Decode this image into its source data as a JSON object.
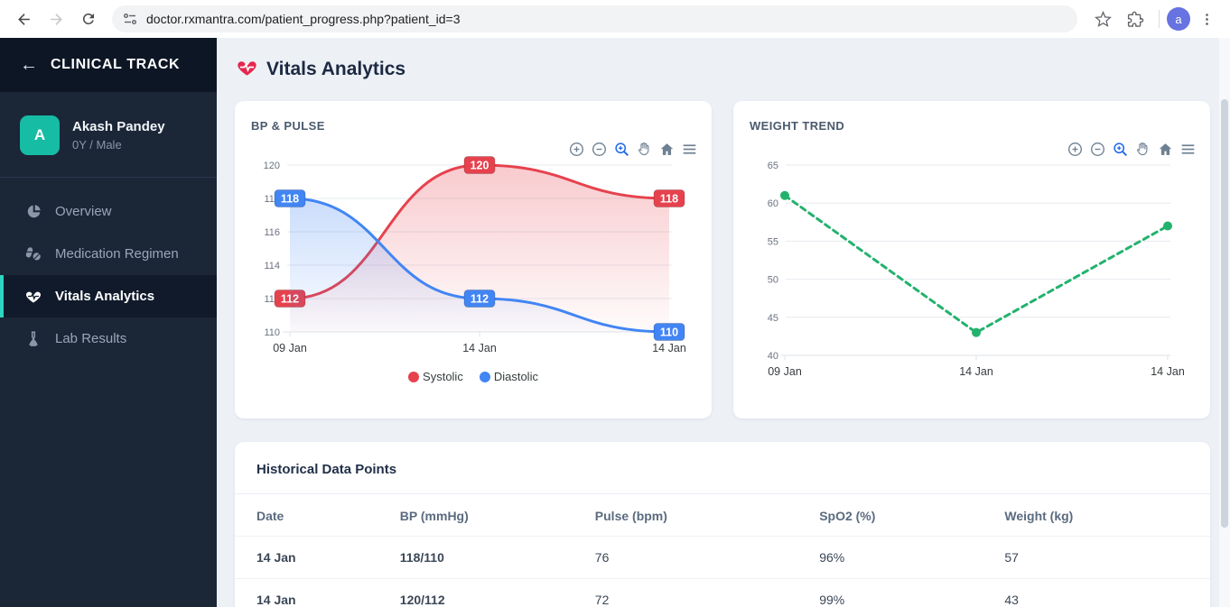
{
  "browser": {
    "url": "doctor.rxmantra.com/patient_progress.php?patient_id=3",
    "profile_initial": "a"
  },
  "sidebar": {
    "back_arrow": "←",
    "title": "CLINICAL TRACK",
    "patient": {
      "initial": "A",
      "name": "Akash Pandey",
      "meta": "0Y / Male"
    },
    "items": [
      {
        "label": "Overview",
        "icon": "pie-chart-icon",
        "active": false
      },
      {
        "label": "Medication Regimen",
        "icon": "pills-icon",
        "active": false
      },
      {
        "label": "Vitals Analytics",
        "icon": "heart-pulse-icon",
        "active": true
      },
      {
        "label": "Lab Results",
        "icon": "flask-icon",
        "active": false
      }
    ]
  },
  "header": {
    "title": "Vitals Analytics",
    "icon": "heart-pulse-icon"
  },
  "colors": {
    "accent_teal": "#16bca4",
    "active_border": "#2dd4bf",
    "systolic_red": "#e6424e",
    "diastolic_blue": "#4285f4",
    "weight_green": "#23b26d",
    "sidebar_bg": "#1b2637",
    "sidebar_header_bg": "#0d1625",
    "page_bg": "#edf1f6"
  },
  "chart_data": [
    {
      "type": "line",
      "title": "BP & PULSE",
      "x": [
        "09 Jan",
        "14 Jan",
        "14 Jan"
      ],
      "series": [
        {
          "name": "Systolic",
          "color": "#e6424e",
          "values": [
            112,
            120,
            118
          ]
        },
        {
          "name": "Diastolic",
          "color": "#4285f4",
          "values": [
            118,
            112,
            110
          ]
        }
      ],
      "ylim": [
        110,
        120
      ],
      "yticks": [
        120,
        118,
        116,
        114,
        112,
        110
      ],
      "curve": "smooth",
      "area_fill": true,
      "data_labels": true,
      "markers": false,
      "dashed": false,
      "grid": true,
      "legend_position": "bottom"
    },
    {
      "type": "line",
      "title": "WEIGHT TREND",
      "x": [
        "09 Jan",
        "14 Jan",
        "14 Jan"
      ],
      "series": [
        {
          "name": "Weight",
          "color": "#23b26d",
          "values": [
            61,
            43,
            57
          ]
        }
      ],
      "ylim": [
        40,
        65
      ],
      "yticks": [
        65,
        60,
        55,
        50,
        45,
        40
      ],
      "curve": "straight",
      "area_fill": false,
      "data_labels": false,
      "markers": true,
      "dashed": true,
      "grid": true,
      "legend_position": "none"
    }
  ],
  "toolbar_icons": [
    "zoom-in-icon",
    "zoom-out-icon",
    "selection-zoom-icon",
    "pan-icon",
    "home-icon",
    "menu-icon"
  ],
  "table": {
    "title": "Historical Data Points",
    "columns": [
      "Date",
      "BP (mmHg)",
      "Pulse (bpm)",
      "SpO2 (%)",
      "Weight (kg)"
    ],
    "rows": [
      [
        "14 Jan",
        "118/110",
        "76",
        "96%",
        "57"
      ],
      [
        "14 Jan",
        "120/112",
        "72",
        "99%",
        "43"
      ]
    ]
  }
}
